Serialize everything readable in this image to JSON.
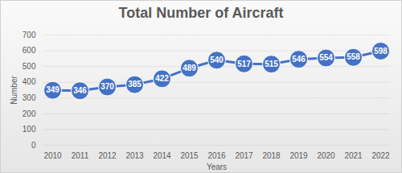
{
  "chart_data": {
    "type": "line",
    "title": "Total Number of Aircraft",
    "x_label": "Years",
    "y_label": "Number",
    "categories": [
      "2010",
      "2011",
      "2012",
      "2013",
      "2014",
      "2015",
      "2016",
      "2017",
      "2018",
      "2019",
      "2020",
      "2021",
      "2022"
    ],
    "values": [
      349,
      346,
      370,
      385,
      422,
      489,
      540,
      517,
      515,
      546,
      554,
      558,
      598
    ],
    "color": "#4472c4",
    "marker": "circle",
    "line_style": "solid",
    "ylim": [
      0,
      700
    ],
    "yticks": [
      0,
      100,
      200,
      300,
      400,
      500,
      600,
      700
    ],
    "grid": true,
    "data_labels": true
  }
}
